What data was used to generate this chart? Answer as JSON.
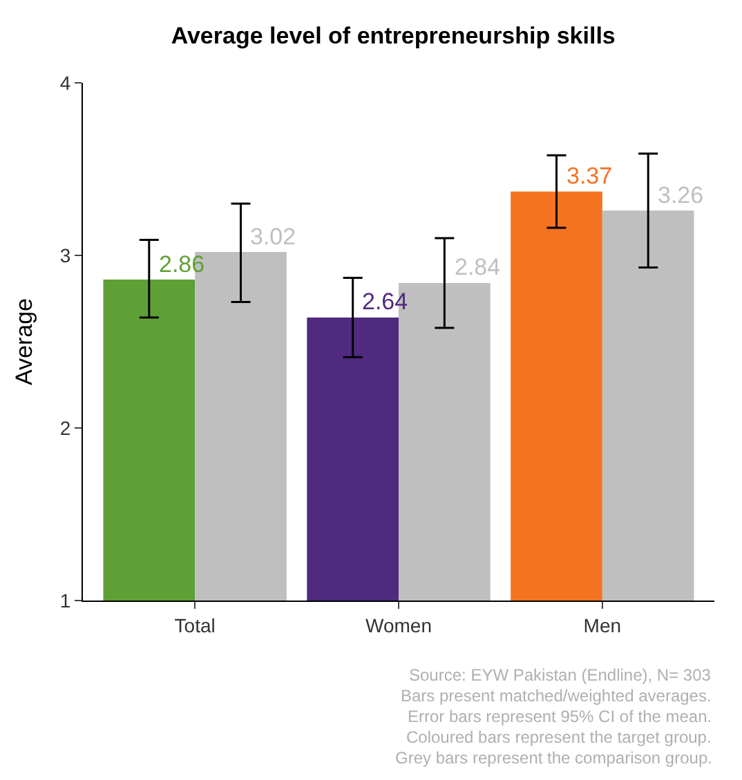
{
  "chart_data": {
    "type": "bar",
    "title": "Average level of entrepreneurship skills",
    "ylabel": "Average",
    "categories": [
      "Total",
      "Women",
      "Men"
    ],
    "series": [
      {
        "colors": [
          "#5ea035",
          "#4f2a7e",
          "#f47321"
        ],
        "values": [
          2.86,
          2.64,
          3.37
        ],
        "errors": [
          [
            2.64,
            3.09
          ],
          [
            2.41,
            2.87
          ],
          [
            3.16,
            3.58
          ]
        ]
      },
      {
        "color": "#bfbfbf",
        "values": [
          3.02,
          2.84,
          3.26
        ],
        "errors": [
          [
            2.73,
            3.3
          ],
          [
            2.58,
            3.1
          ],
          [
            2.93,
            3.59
          ]
        ]
      }
    ],
    "data_labels": true,
    "ylim": [
      1,
      4
    ],
    "yticks": [
      1,
      2,
      3,
      4
    ],
    "annotations": [
      "Source: EYW Pakistan (Endline), N= 303",
      "Bars present matched/weighted averages.",
      "Error bars represent 95% CI of the mean.",
      "Coloured bars represent the target group.",
      "Grey bars represent the comparison group."
    ]
  }
}
